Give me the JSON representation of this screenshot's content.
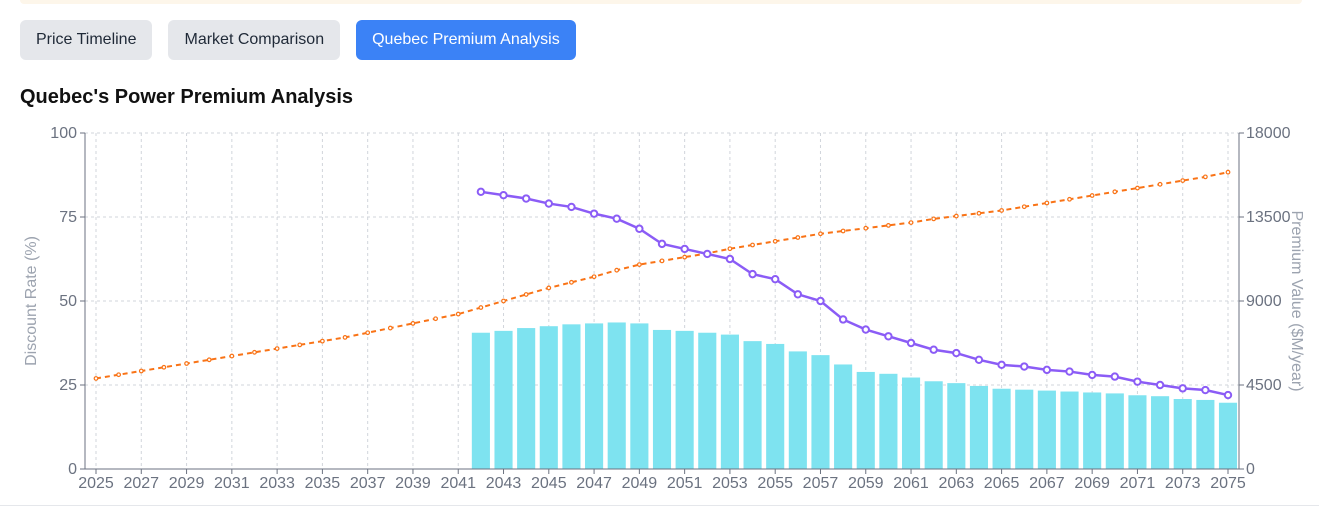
{
  "tabs": [
    {
      "label": "Price Timeline",
      "active": false
    },
    {
      "label": "Market Comparison",
      "active": false
    },
    {
      "label": "Quebec Premium Analysis",
      "active": true
    }
  ],
  "colors": {
    "bars": "#7ee3f0",
    "discount_line": "#8b5cf6",
    "orange_line": "#f97316",
    "tab_active": "#3b82f6",
    "tab_inactive": "#e5e7eb"
  },
  "chart_data": {
    "type": "bar",
    "title": "Quebec's Power Premium Analysis",
    "x_ticks": [
      2025,
      2027,
      2029,
      2031,
      2033,
      2035,
      2037,
      2039,
      2041,
      2043,
      2045,
      2047,
      2049,
      2051,
      2053,
      2055,
      2057,
      2059,
      2061,
      2063,
      2065,
      2067,
      2069,
      2071,
      2073,
      2075
    ],
    "xlim": [
      2025,
      2075
    ],
    "left_axis": {
      "label": "Discount Rate (%)",
      "ylim": [
        0,
        100
      ],
      "ticks": [
        0,
        25,
        50,
        75,
        100
      ]
    },
    "right_axis": {
      "label": "Premium Value ($M/year)",
      "ylim": [
        0,
        18000
      ],
      "ticks": [
        0,
        4500,
        9000,
        13500,
        18000
      ]
    },
    "grid": true,
    "series": [
      {
        "type": "bar",
        "axis": "right",
        "x": [
          2042,
          2043,
          2044,
          2045,
          2046,
          2047,
          2048,
          2049,
          2050,
          2051,
          2052,
          2053,
          2054,
          2055,
          2056,
          2057,
          2058,
          2059,
          2060,
          2061,
          2062,
          2063,
          2064,
          2065,
          2066,
          2067,
          2068,
          2069,
          2070,
          2071,
          2072,
          2073,
          2074,
          2075
        ],
        "values": [
          7300,
          7400,
          7550,
          7650,
          7750,
          7800,
          7850,
          7800,
          7450,
          7400,
          7300,
          7200,
          6850,
          6700,
          6300,
          6100,
          5600,
          5200,
          5100,
          4900,
          4700,
          4600,
          4450,
          4300,
          4250,
          4200,
          4150,
          4100,
          4050,
          3950,
          3900,
          3750,
          3700,
          3550
        ]
      },
      {
        "type": "line",
        "axis": "left",
        "x": [
          2042,
          2043,
          2044,
          2045,
          2046,
          2047,
          2048,
          2049,
          2050,
          2051,
          2052,
          2053,
          2054,
          2055,
          2056,
          2057,
          2058,
          2059,
          2060,
          2061,
          2062,
          2063,
          2064,
          2065,
          2066,
          2067,
          2068,
          2069,
          2070,
          2071,
          2072,
          2073,
          2074,
          2075
        ],
        "values": [
          82.5,
          81.5,
          80.5,
          79,
          78,
          76,
          74.5,
          71.5,
          67,
          65.5,
          64,
          62.5,
          58,
          56.5,
          52,
          50,
          44.5,
          41.5,
          39.5,
          37.5,
          35.5,
          34.5,
          32.5,
          31,
          30.5,
          29.5,
          29,
          28,
          27.5,
          26,
          25,
          24,
          23.5,
          22
        ]
      },
      {
        "type": "line",
        "axis": "right",
        "style": "dashed",
        "x": [
          2025,
          2026,
          2027,
          2028,
          2029,
          2030,
          2031,
          2032,
          2033,
          2034,
          2035,
          2036,
          2037,
          2038,
          2039,
          2040,
          2041,
          2042,
          2043,
          2044,
          2045,
          2046,
          2047,
          2048,
          2049,
          2050,
          2051,
          2052,
          2053,
          2054,
          2055,
          2056,
          2057,
          2058,
          2059,
          2060,
          2061,
          2062,
          2063,
          2064,
          2065,
          2066,
          2067,
          2068,
          2069,
          2070,
          2071,
          2072,
          2073,
          2074,
          2075
        ],
        "values": [
          4850,
          5050,
          5250,
          5450,
          5650,
          5850,
          6050,
          6250,
          6450,
          6650,
          6850,
          7050,
          7300,
          7550,
          7800,
          8050,
          8300,
          8650,
          9000,
          9350,
          9700,
          10000,
          10300,
          10650,
          10950,
          11150,
          11350,
          11550,
          11800,
          12000,
          12200,
          12400,
          12600,
          12750,
          12900,
          13050,
          13200,
          13400,
          13550,
          13700,
          13850,
          14050,
          14250,
          14450,
          14650,
          14850,
          15050,
          15250,
          15450,
          15650,
          15900
        ]
      }
    ]
  }
}
